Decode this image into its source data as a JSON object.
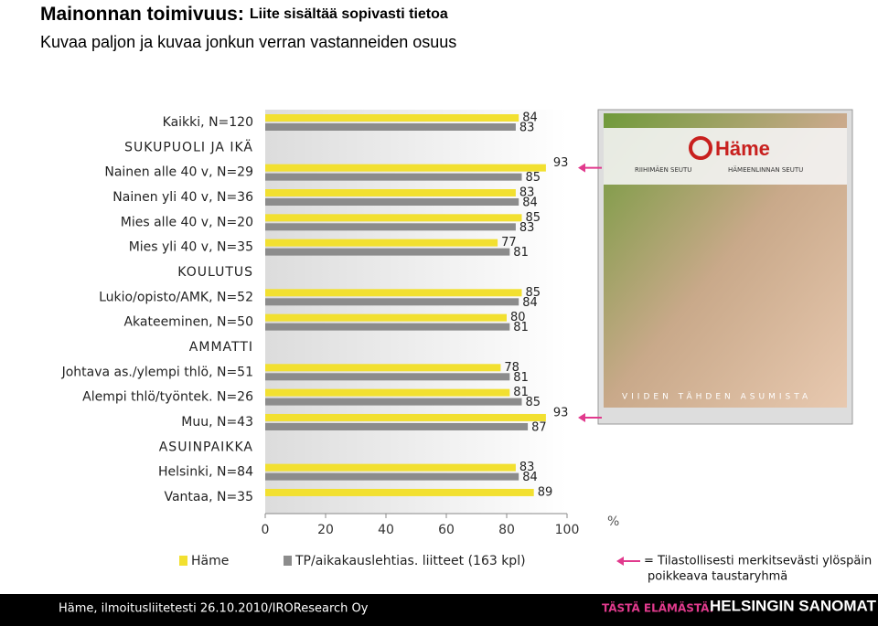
{
  "chart_data": {
    "type": "hbar",
    "title": "Mainonnan toimivuus:",
    "title_suffix": "Liite sisältää sopivasti tietoa",
    "subtitle": "Kuvaa paljon ja kuvaa jonkun verran vastanneiden osuus",
    "categories": [
      "Kaikki, N=120",
      "SUKUPUOLI JA IKÄ",
      "Nainen alle 40 v, N=29",
      "Nainen yli 40 v, N=36",
      "Mies alle 40 v, N=20",
      "Mies yli 40 v, N=35",
      "KOULUTUS",
      "Lukio/opisto/AMK, N=52",
      "Akateeminen, N=50",
      "AMMATTI",
      "Johtava as./ylempi thlö, N=51",
      "Alempi thlö/työntek. N=26",
      "Muu, N=43",
      "ASUINPAIKKA",
      "Helsinki, N=84",
      "Vantaa, N=35"
    ],
    "series": [
      {
        "name": "Häme",
        "color": "#f2e030",
        "values": [
          84,
          null,
          93,
          83,
          85,
          77,
          null,
          85,
          80,
          null,
          78,
          81,
          93,
          null,
          83,
          89
        ]
      },
      {
        "name": "TP/aikakauslehtias. liitteet (163 kpl)",
        "color": "#8c8c8c",
        "values": [
          83,
          null,
          85,
          84,
          83,
          81,
          null,
          84,
          81,
          null,
          81,
          85,
          87,
          null,
          84,
          null
        ]
      }
    ],
    "significant": [
      "Nainen alle 40 v, N=29",
      "Muu, N=43"
    ],
    "significant_note": [
      "= Tilastollisesti merkitsevästi ylöspäin",
      "poikkeava taustaryhmä"
    ],
    "xlabel": "%",
    "xlim": [
      0,
      100
    ],
    "xticks": [
      0,
      20,
      40,
      60,
      80,
      100
    ],
    "footer": "Häme, ilmoitusliitetesti 26.10.2010/IROResearch Oy",
    "brand_slogan": "TÄSTÄ ELÄMÄSTÄ.",
    "brand": "HELSINGIN SANOMAT",
    "cover": {
      "logo": "Häme",
      "left_region": "RIIHIMÄEN SEUTU",
      "right_region": "HÄMEENLINNAN SEUTU",
      "tagline": "VIIDEN TÄHDEN ASUMISTA"
    }
  }
}
